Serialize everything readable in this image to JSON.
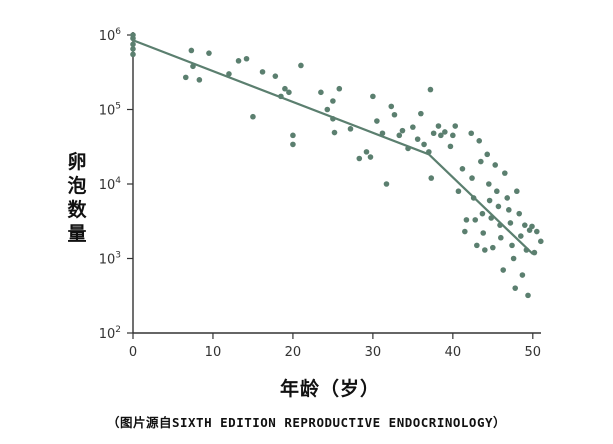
{
  "chart_data": {
    "type": "scatter",
    "title": "",
    "xlabel": "年龄（岁）",
    "ylabel": "卵泡数量",
    "xlim": [
      0,
      51
    ],
    "ylim_log10": [
      2,
      6
    ],
    "yscale": "log",
    "grid": false,
    "x_ticks": [
      "0",
      "10",
      "20",
      "30",
      "40",
      "50"
    ],
    "y_ticks": [
      {
        "base": "10",
        "exp": "6"
      },
      {
        "base": "10",
        "exp": "5"
      },
      {
        "base": "10",
        "exp": "4"
      },
      {
        "base": "10",
        "exp": "3"
      },
      {
        "base": "10",
        "exp": "2"
      }
    ],
    "point_color": "#5b7f6f",
    "line_color": "#5b7f6f",
    "series": [
      {
        "type": "scatter",
        "points": [
          [
            0,
            1000000
          ],
          [
            0,
            900000
          ],
          [
            0,
            750000
          ],
          [
            0,
            650000
          ],
          [
            0,
            550000
          ],
          [
            6.6,
            270000
          ],
          [
            7.3,
            620000
          ],
          [
            7.5,
            380000
          ],
          [
            8.3,
            250000
          ],
          [
            9.5,
            570000
          ],
          [
            12,
            300000
          ],
          [
            13.2,
            450000
          ],
          [
            14.2,
            480000
          ],
          [
            15,
            80000
          ],
          [
            16.2,
            320000
          ],
          [
            17.8,
            280000
          ],
          [
            18.5,
            150000
          ],
          [
            19,
            190000
          ],
          [
            19.5,
            170000
          ],
          [
            20,
            45000
          ],
          [
            20,
            34000
          ],
          [
            21,
            390000
          ],
          [
            23.5,
            170000
          ],
          [
            24.3,
            100000
          ],
          [
            25,
            130000
          ],
          [
            25,
            75000
          ],
          [
            25.2,
            49000
          ],
          [
            25.8,
            190000
          ],
          [
            27.2,
            55000
          ],
          [
            28.3,
            22000
          ],
          [
            29.2,
            27000
          ],
          [
            29.7,
            23000
          ],
          [
            30,
            150000
          ],
          [
            30.5,
            70000
          ],
          [
            31.2,
            48000
          ],
          [
            31.7,
            10000
          ],
          [
            32.3,
            110000
          ],
          [
            32.7,
            85000
          ],
          [
            33.3,
            45000
          ],
          [
            33.7,
            52000
          ],
          [
            34.4,
            30000
          ],
          [
            35,
            58000
          ],
          [
            35.6,
            40000
          ],
          [
            36,
            88000
          ],
          [
            36.4,
            34000
          ],
          [
            37,
            27000
          ],
          [
            37.2,
            185000
          ],
          [
            37.3,
            12000
          ],
          [
            37.6,
            48000
          ],
          [
            38.2,
            60000
          ],
          [
            38.5,
            45000
          ],
          [
            39,
            50000
          ],
          [
            39.7,
            32000
          ],
          [
            40,
            45000
          ],
          [
            40.3,
            60000
          ],
          [
            40.7,
            8000
          ],
          [
            41.2,
            16000
          ],
          [
            41.5,
            2300
          ],
          [
            41.7,
            3300
          ],
          [
            42.3,
            48000
          ],
          [
            42.4,
            12000
          ],
          [
            42.6,
            6500
          ],
          [
            42.8,
            3300
          ],
          [
            43,
            1500
          ],
          [
            43.3,
            38000
          ],
          [
            43.5,
            20000
          ],
          [
            43.7,
            4000
          ],
          [
            43.8,
            2200
          ],
          [
            44,
            1300
          ],
          [
            44.3,
            25000
          ],
          [
            44.5,
            10000
          ],
          [
            44.6,
            6000
          ],
          [
            44.8,
            3500
          ],
          [
            45,
            1400
          ],
          [
            45.3,
            18000
          ],
          [
            45.5,
            8000
          ],
          [
            45.7,
            5000
          ],
          [
            45.9,
            2800
          ],
          [
            46,
            1900
          ],
          [
            46.3,
            700
          ],
          [
            46.5,
            14000
          ],
          [
            46.8,
            6500
          ],
          [
            47,
            4500
          ],
          [
            47.2,
            3000
          ],
          [
            47.4,
            1500
          ],
          [
            47.6,
            1000
          ],
          [
            47.8,
            400
          ],
          [
            48,
            8000
          ],
          [
            48.3,
            4000
          ],
          [
            48.5,
            2000
          ],
          [
            48.7,
            600
          ],
          [
            49,
            2800
          ],
          [
            49.2,
            1300
          ],
          [
            49.4,
            320
          ],
          [
            49.6,
            2400
          ],
          [
            49.9,
            2700
          ],
          [
            50.2,
            1200
          ],
          [
            50.5,
            2300
          ],
          [
            51,
            1700
          ]
        ]
      },
      {
        "type": "line",
        "points": [
          [
            0,
            850000
          ],
          [
            37,
            25000
          ],
          [
            50,
            1150
          ]
        ]
      }
    ]
  },
  "caption": "（图片源自SIXTH EDITION REPRODUCTIVE ENDOCRINOLOGY）"
}
